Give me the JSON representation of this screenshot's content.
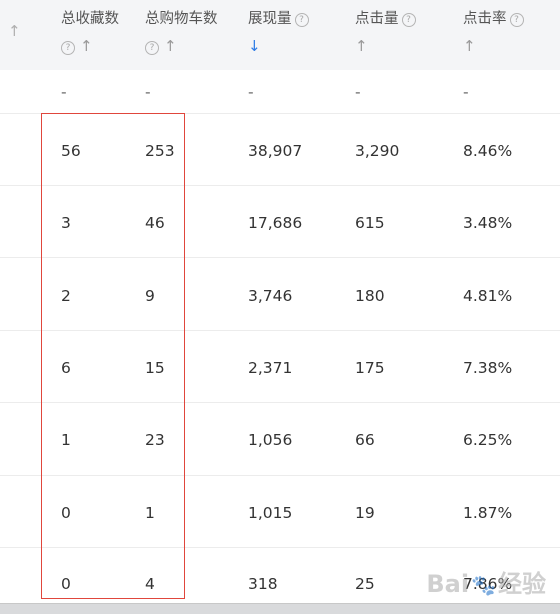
{
  "header": {
    "edge_arrow": "↑",
    "columns": [
      {
        "label": "总收藏数",
        "help": "?",
        "arrow": "↑"
      },
      {
        "label": "总购物车数",
        "help": "?",
        "arrow": "↑"
      },
      {
        "label": "展现量",
        "help": "?",
        "arrow": "↓"
      },
      {
        "label": "点击量",
        "help": "?",
        "arrow": "↑"
      },
      {
        "label": "点击率",
        "help": "?",
        "arrow": "↑"
      }
    ]
  },
  "summary_row": [
    "-",
    "-",
    "-",
    "-",
    "-"
  ],
  "rows": [
    [
      "56",
      "253",
      "38,907",
      "3,290",
      "8.46%"
    ],
    [
      "3",
      "46",
      "17,686",
      "615",
      "3.48%"
    ],
    [
      "2",
      "9",
      "3,746",
      "180",
      "4.81%"
    ],
    [
      "6",
      "15",
      "2,371",
      "175",
      "7.38%"
    ],
    [
      "1",
      "23",
      "1,056",
      "66",
      "6.25%"
    ],
    [
      "0",
      "1",
      "1,015",
      "19",
      "1.87%"
    ],
    [
      "0",
      "4",
      "318",
      "25",
      "7.86%"
    ]
  ],
  "colors": {
    "highlight_border": "#e0463c",
    "sort_active": "#2d7be5"
  },
  "watermark": {
    "text_a": "Bai",
    "text_b": "经验"
  }
}
